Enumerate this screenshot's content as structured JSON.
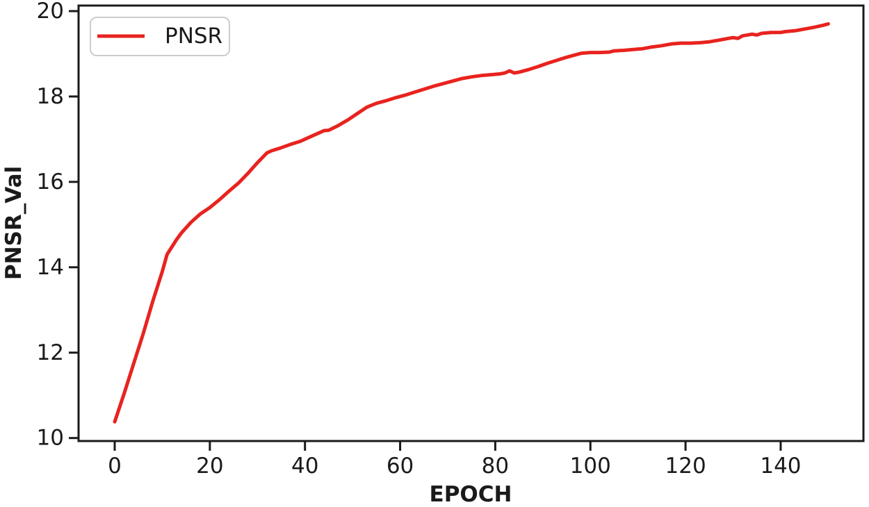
{
  "figure": {
    "background": "#ffffff"
  },
  "chart_data": {
    "type": "line",
    "title": "",
    "xlabel": "EPOCH",
    "ylabel": "PNSR_Val",
    "xlim": [
      -7.6,
      157.4
    ],
    "ylim": [
      9.93,
      20.13
    ],
    "xticks": [
      0,
      20,
      40,
      60,
      80,
      100,
      120,
      140
    ],
    "yticks": [
      10,
      12,
      14,
      16,
      18,
      20
    ],
    "grid": false,
    "legend": {
      "position": "upper-left",
      "entries": [
        "PNSR"
      ]
    },
    "colors": {
      "line": "#e8231f",
      "axis": "#1a1a1a",
      "legend_border": "#cccccc",
      "legend_background": "#ffffff"
    },
    "series": [
      {
        "name": "PNSR",
        "x": [
          0,
          2,
          4,
          6,
          8,
          10,
          11,
          13,
          14,
          16,
          18,
          20,
          22,
          24,
          26,
          28,
          30,
          32,
          33,
          35,
          37,
          39,
          41,
          43,
          44,
          45,
          47,
          49,
          51,
          53,
          55,
          57,
          59,
          61,
          63,
          65,
          67,
          69,
          71,
          73,
          75,
          77,
          79,
          81,
          82,
          83,
          84,
          85,
          87,
          89,
          91,
          93,
          95,
          97,
          98,
          100,
          102,
          104,
          105,
          107,
          109,
          111,
          113,
          115,
          117,
          119,
          121,
          123,
          125,
          127,
          129,
          130,
          131,
          132,
          133,
          134,
          135,
          136,
          138,
          140,
          141,
          143,
          145,
          147,
          149,
          150
        ],
        "values": [
          10.38,
          11.05,
          11.75,
          12.45,
          13.2,
          13.9,
          14.3,
          14.65,
          14.8,
          15.05,
          15.25,
          15.4,
          15.58,
          15.78,
          15.97,
          16.2,
          16.45,
          16.68,
          16.73,
          16.8,
          16.88,
          16.95,
          17.05,
          17.15,
          17.2,
          17.21,
          17.32,
          17.45,
          17.6,
          17.75,
          17.84,
          17.9,
          17.97,
          18.03,
          18.1,
          18.17,
          18.24,
          18.3,
          18.36,
          18.42,
          18.46,
          18.49,
          18.51,
          18.53,
          18.55,
          18.6,
          18.55,
          18.57,
          18.63,
          18.7,
          18.78,
          18.85,
          18.92,
          18.98,
          19.01,
          19.03,
          19.03,
          19.04,
          19.07,
          19.08,
          19.1,
          19.12,
          19.16,
          19.19,
          19.23,
          19.25,
          19.25,
          19.26,
          19.28,
          19.32,
          19.36,
          19.38,
          19.36,
          19.42,
          19.44,
          19.46,
          19.44,
          19.48,
          19.5,
          19.5,
          19.52,
          19.54,
          19.58,
          19.62,
          19.67,
          19.7
        ]
      }
    ]
  }
}
